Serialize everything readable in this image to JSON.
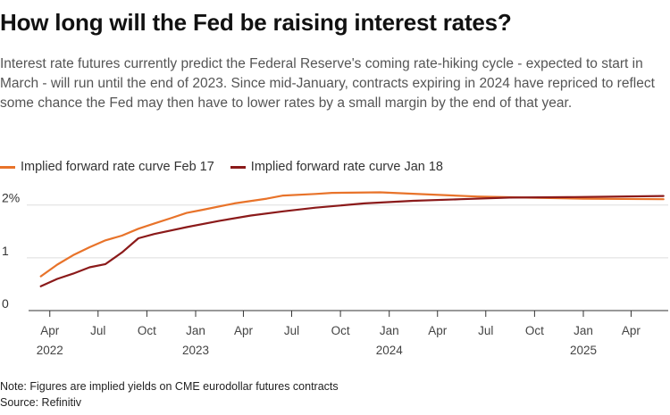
{
  "title": "How long will the Fed be raising interest rates?",
  "subtitle": "Interest rate futures currently predict the Federal Reserve's coming rate-hiking cycle - expected to start in March - will run until the end of 2023. Since mid-January, contracts expiring in 2024 have repriced to reflect some chance the Fed may then have to lower rates by a small margin by the end of that year.",
  "note": "Note: Figures are implied yields on CME eurodollar futures contracts",
  "source": "Source: Refinitiv",
  "colors": {
    "feb17": "#e8732a",
    "jan18": "#8b1a1a",
    "grid": "#dddddd",
    "axis": "#333333"
  },
  "chart_data": {
    "type": "line",
    "y_ticks": [
      {
        "value": 0,
        "label": "0"
      },
      {
        "value": 1,
        "label": "1"
      },
      {
        "value": 2,
        "label": "2%"
      }
    ],
    "ylim": [
      0,
      2.35
    ],
    "xlim": [
      "2022-02-20",
      "2025-06-10"
    ],
    "x_ticks": [
      {
        "date": "2022-04-01",
        "label": "Apr",
        "year": "2022"
      },
      {
        "date": "2022-07-01",
        "label": "Jul",
        "year": ""
      },
      {
        "date": "2022-10-01",
        "label": "Oct",
        "year": ""
      },
      {
        "date": "2023-01-01",
        "label": "Jan",
        "year": "2023"
      },
      {
        "date": "2023-04-01",
        "label": "Apr",
        "year": ""
      },
      {
        "date": "2023-07-01",
        "label": "Jul",
        "year": ""
      },
      {
        "date": "2023-10-01",
        "label": "Oct",
        "year": ""
      },
      {
        "date": "2024-01-01",
        "label": "Jan",
        "year": "2024"
      },
      {
        "date": "2024-04-01",
        "label": "Apr",
        "year": ""
      },
      {
        "date": "2024-07-01",
        "label": "Jul",
        "year": ""
      },
      {
        "date": "2024-10-01",
        "label": "Oct",
        "year": ""
      },
      {
        "date": "2025-01-01",
        "label": "Jan",
        "year": "2025"
      },
      {
        "date": "2025-04-01",
        "label": "Apr",
        "year": ""
      }
    ],
    "series": [
      {
        "name": "Implied forward rate curve Feb 17",
        "color": "#e8732a",
        "points": [
          [
            "2022-03-15",
            0.65
          ],
          [
            "2022-04-15",
            0.87
          ],
          [
            "2022-05-15",
            1.05
          ],
          [
            "2022-06-15",
            1.2
          ],
          [
            "2022-07-15",
            1.33
          ],
          [
            "2022-08-15",
            1.42
          ],
          [
            "2022-09-15",
            1.55
          ],
          [
            "2022-10-15",
            1.65
          ],
          [
            "2022-11-15",
            1.75
          ],
          [
            "2022-12-15",
            1.85
          ],
          [
            "2023-01-15",
            1.91
          ],
          [
            "2023-03-15",
            2.03
          ],
          [
            "2023-05-15",
            2.12
          ],
          [
            "2023-06-15",
            2.18
          ],
          [
            "2023-08-15",
            2.21
          ],
          [
            "2023-09-15",
            2.23
          ],
          [
            "2023-12-15",
            2.24
          ],
          [
            "2024-03-15",
            2.2
          ],
          [
            "2024-06-15",
            2.16
          ],
          [
            "2024-09-15",
            2.14
          ],
          [
            "2025-01-01",
            2.12
          ],
          [
            "2025-06-01",
            2.11
          ]
        ]
      },
      {
        "name": "Implied forward rate curve Jan 18",
        "color": "#8b1a1a",
        "points": [
          [
            "2022-03-15",
            0.46
          ],
          [
            "2022-04-15",
            0.6
          ],
          [
            "2022-05-15",
            0.7
          ],
          [
            "2022-06-15",
            0.82
          ],
          [
            "2022-07-15",
            0.88
          ],
          [
            "2022-08-15",
            1.1
          ],
          [
            "2022-09-15",
            1.37
          ],
          [
            "2022-10-15",
            1.45
          ],
          [
            "2022-12-15",
            1.58
          ],
          [
            "2023-02-15",
            1.7
          ],
          [
            "2023-04-15",
            1.8
          ],
          [
            "2023-06-15",
            1.88
          ],
          [
            "2023-08-15",
            1.95
          ],
          [
            "2023-11-15",
            2.03
          ],
          [
            "2024-02-15",
            2.08
          ],
          [
            "2024-05-15",
            2.11
          ],
          [
            "2024-08-15",
            2.14
          ],
          [
            "2024-12-15",
            2.15
          ],
          [
            "2025-06-01",
            2.17
          ]
        ]
      }
    ]
  }
}
